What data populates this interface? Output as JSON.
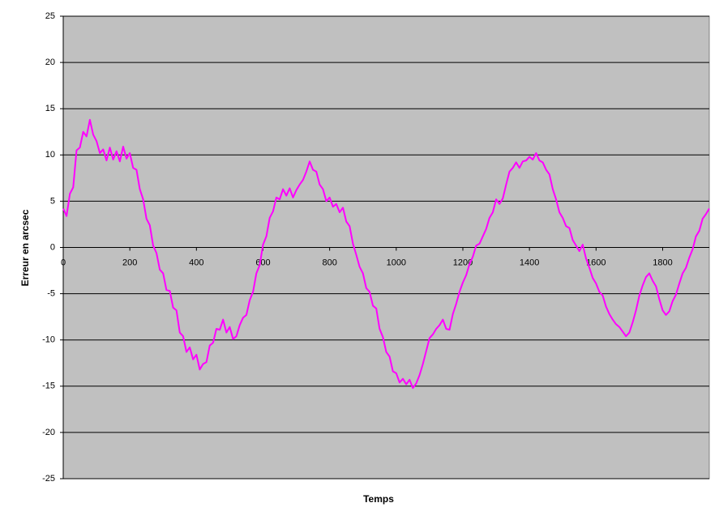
{
  "chart_data": {
    "type": "line",
    "x_label": "Temps",
    "y_label": "Erreur en arcsec",
    "x": [
      0,
      10,
      20,
      30,
      40,
      50,
      60,
      70,
      80,
      90,
      100,
      110,
      120,
      130,
      140,
      150,
      160,
      170,
      180,
      190,
      200,
      210,
      220,
      230,
      240,
      250,
      260,
      270,
      280,
      290,
      300,
      310,
      320,
      330,
      340,
      350,
      360,
      370,
      380,
      390,
      400,
      410,
      420,
      430,
      440,
      450,
      460,
      470,
      480,
      490,
      500,
      510,
      520,
      530,
      540,
      550,
      560,
      570,
      580,
      590,
      600,
      610,
      620,
      630,
      640,
      650,
      660,
      670,
      680,
      690,
      700,
      710,
      720,
      730,
      740,
      750,
      760,
      770,
      780,
      790,
      800,
      810,
      820,
      830,
      840,
      850,
      860,
      870,
      880,
      890,
      900,
      910,
      920,
      930,
      940,
      950,
      960,
      970,
      980,
      990,
      1000,
      1010,
      1020,
      1030,
      1040,
      1050,
      1060,
      1070,
      1080,
      1090,
      1100,
      1110,
      1120,
      1130,
      1140,
      1150,
      1160,
      1170,
      1180,
      1190,
      1200,
      1210,
      1220,
      1230,
      1240,
      1250,
      1260,
      1270,
      1280,
      1290,
      1300,
      1310,
      1320,
      1330,
      1340,
      1350,
      1360,
      1370,
      1380,
      1390,
      1400,
      1410,
      1420,
      1430,
      1440,
      1450,
      1460,
      1470,
      1480,
      1490,
      1500,
      1510,
      1520,
      1530,
      1540,
      1550,
      1560,
      1570,
      1580,
      1590,
      1600,
      1610,
      1620,
      1630,
      1640,
      1650,
      1660,
      1670,
      1680,
      1690,
      1700,
      1710,
      1720,
      1730,
      1740,
      1750,
      1760,
      1770,
      1780,
      1790,
      1800,
      1810,
      1820,
      1830,
      1840,
      1850,
      1860,
      1870,
      1880,
      1890,
      1900,
      1910,
      1920,
      1930,
      1940
    ],
    "series": [
      {
        "color": "#ff00ff",
        "values": [
          4.2,
          3.4,
          5.8,
          6.5,
          10.5,
          10.8,
          12.5,
          12.0,
          13.8,
          12.2,
          11.5,
          10.2,
          10.6,
          9.4,
          10.8,
          9.5,
          10.4,
          9.3,
          10.9,
          9.6,
          10.2,
          8.6,
          8.4,
          6.3,
          5.2,
          3.1,
          2.4,
          0.2,
          -0.6,
          -2.4,
          -2.8,
          -4.6,
          -4.7,
          -6.5,
          -6.8,
          -9.2,
          -9.6,
          -11.3,
          -10.8,
          -12.1,
          -11.6,
          -13.2,
          -12.6,
          -12.4,
          -10.6,
          -10.3,
          -8.8,
          -8.9,
          -7.8,
          -9.2,
          -8.6,
          -9.9,
          -9.6,
          -8.4,
          -7.6,
          -7.3,
          -5.7,
          -4.8,
          -2.8,
          -1.9,
          0.3,
          1.2,
          3.2,
          3.9,
          5.4,
          5.2,
          6.3,
          5.6,
          6.4,
          5.4,
          6.2,
          6.8,
          7.3,
          8.2,
          9.3,
          8.4,
          8.2,
          6.8,
          6.3,
          5.0,
          5.4,
          4.4,
          4.7,
          3.8,
          4.3,
          2.8,
          2.3,
          0.4,
          -0.8,
          -2.1,
          -2.8,
          -4.4,
          -4.8,
          -6.3,
          -6.6,
          -8.8,
          -9.7,
          -11.3,
          -11.8,
          -13.4,
          -13.6,
          -14.6,
          -14.2,
          -14.8,
          -14.3,
          -15.2,
          -14.7,
          -13.8,
          -12.6,
          -11.2,
          -9.8,
          -9.4,
          -8.8,
          -8.4,
          -7.8,
          -8.8,
          -8.9,
          -7.2,
          -6.1,
          -4.8,
          -3.8,
          -3.0,
          -1.8,
          -1.0,
          0.2,
          0.4,
          1.2,
          2.0,
          3.2,
          3.8,
          5.2,
          4.7,
          5.3,
          6.8,
          8.2,
          8.6,
          9.2,
          8.6,
          9.3,
          9.4,
          9.8,
          9.5,
          10.2,
          9.4,
          9.2,
          8.4,
          7.9,
          6.3,
          5.2,
          3.8,
          3.2,
          2.3,
          2.1,
          0.8,
          0.2,
          -0.4,
          0.3,
          -1.2,
          -2.2,
          -3.3,
          -3.9,
          -4.8,
          -5.2,
          -6.4,
          -7.2,
          -7.8,
          -8.3,
          -8.6,
          -9.1,
          -9.6,
          -9.2,
          -8.1,
          -6.8,
          -5.2,
          -4.1,
          -3.2,
          -2.8,
          -3.6,
          -4.2,
          -5.6,
          -6.8,
          -7.3,
          -6.9,
          -5.8,
          -5.1,
          -3.9,
          -2.8,
          -2.2,
          -1.1,
          -0.2,
          1.2,
          1.8,
          3.1,
          3.6,
          4.2
        ]
      }
    ],
    "xlim": [
      0,
      1940
    ],
    "xticks": [
      0,
      200,
      400,
      600,
      800,
      1000,
      1200,
      1400,
      1600,
      1800
    ],
    "ylim": [
      -25,
      25
    ],
    "yticks": [
      -25,
      -20,
      -15,
      -10,
      -5,
      0,
      5,
      10,
      15,
      20,
      25
    ],
    "grid": true,
    "plot_background": "#c0c0c0"
  }
}
